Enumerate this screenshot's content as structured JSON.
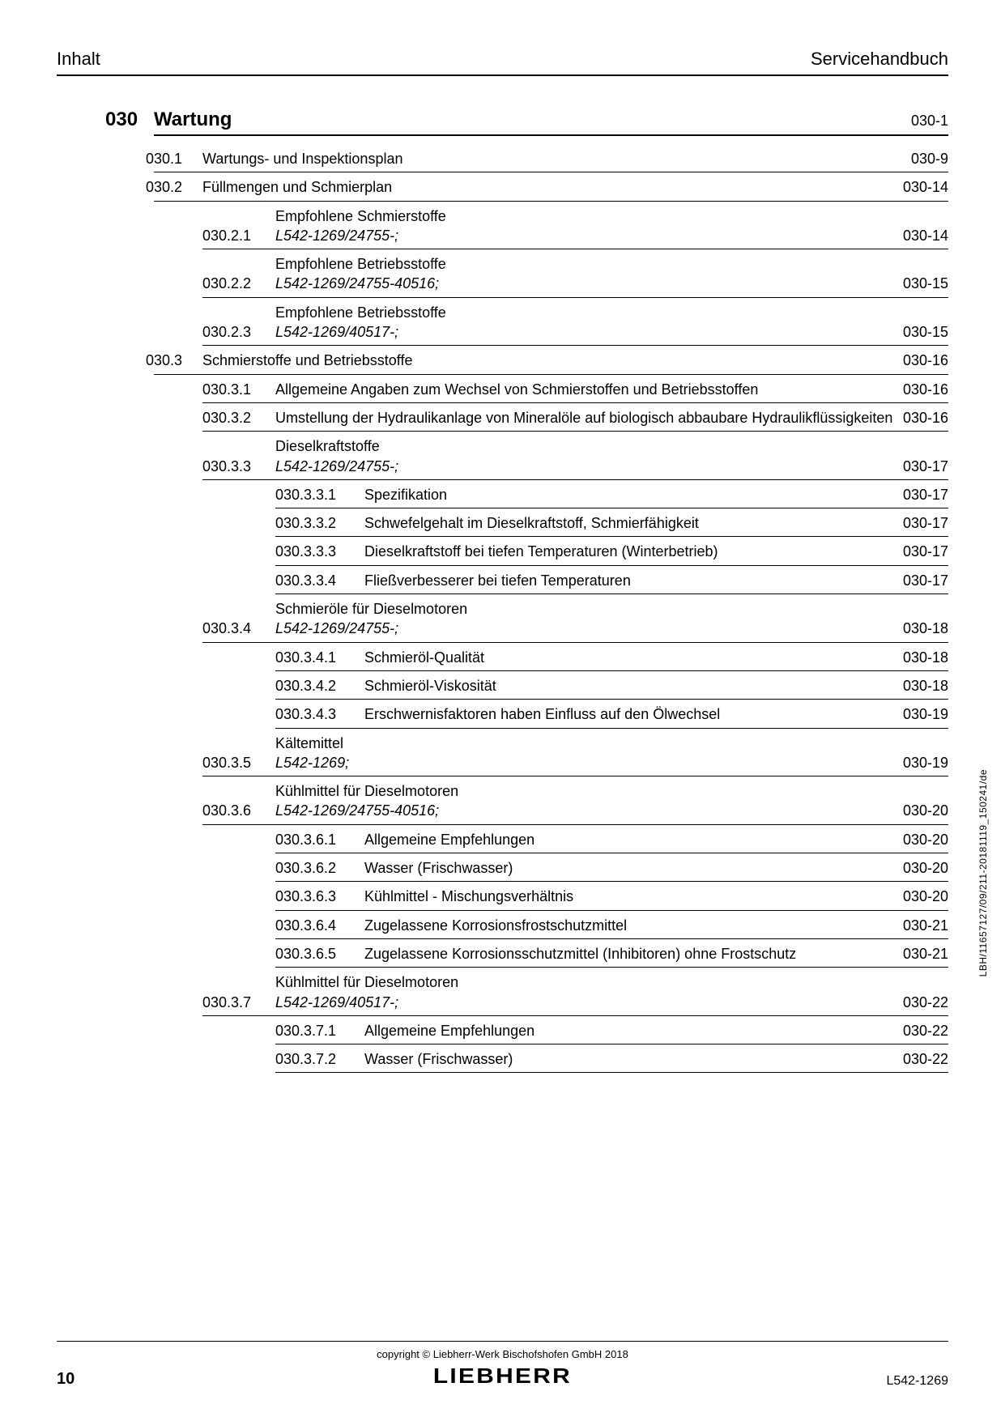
{
  "header": {
    "left": "Inhalt",
    "right": "Servicehandbuch"
  },
  "chapter": {
    "num": "030",
    "title": "Wartung",
    "page": "030-1"
  },
  "entries": [
    {
      "lvl": 1,
      "num": "030.1",
      "txt": "Wartungs- und Inspektionsplan",
      "pg": "030-9"
    },
    {
      "lvl": 1,
      "num": "030.2",
      "txt": "Füllmengen und Schmierplan",
      "pg": "030-14"
    },
    {
      "lvl": 2,
      "num": "030.2.1",
      "txt": "Empfohlene Schmierstoffe",
      "sub": "L542-1269/24755-;",
      "pg": "030-14"
    },
    {
      "lvl": 2,
      "num": "030.2.2",
      "txt": "Empfohlene Betriebsstoffe",
      "sub": "L542-1269/24755-40516;",
      "pg": "030-15"
    },
    {
      "lvl": 2,
      "num": "030.2.3",
      "txt": "Empfohlene Betriebsstoffe",
      "sub": "L542-1269/40517-;",
      "pg": "030-15"
    },
    {
      "lvl": 1,
      "num": "030.3",
      "txt": "Schmierstoffe und Betriebsstoffe",
      "pg": "030-16"
    },
    {
      "lvl": 2,
      "num": "030.3.1",
      "txt": "Allgemeine Angaben zum Wechsel von Schmierstoffen und Betriebsstoffen",
      "pg": "030-16"
    },
    {
      "lvl": 2,
      "num": "030.3.2",
      "txt": "Umstellung der Hydraulikanlage von Mineralöle auf biologisch abbaubare Hydraulikflüssigkeiten",
      "pg": "030-16"
    },
    {
      "lvl": 2,
      "num": "030.3.3",
      "txt": "Dieselkraftstoffe",
      "sub": "L542-1269/24755-;",
      "pg": "030-17"
    },
    {
      "lvl": 3,
      "num": "030.3.3.1",
      "txt": "Spezifikation",
      "pg": "030-17"
    },
    {
      "lvl": 3,
      "num": "030.3.3.2",
      "txt": "Schwefelgehalt im Dieselkraftstoff, Schmierfähigkeit",
      "pg": "030-17"
    },
    {
      "lvl": 3,
      "num": "030.3.3.3",
      "txt": "Dieselkraftstoff bei tiefen Temperaturen (Winterbetrieb)",
      "pg": "030-17"
    },
    {
      "lvl": 3,
      "num": "030.3.3.4",
      "txt": "Fließverbesserer bei tiefen Temperaturen",
      "pg": "030-17"
    },
    {
      "lvl": 2,
      "num": "030.3.4",
      "txt": "Schmieröle für Dieselmotoren",
      "sub": "L542-1269/24755-;",
      "pg": "030-18"
    },
    {
      "lvl": 3,
      "num": "030.3.4.1",
      "txt": "Schmieröl-Qualität",
      "pg": "030-18"
    },
    {
      "lvl": 3,
      "num": "030.3.4.2",
      "txt": "Schmieröl-Viskosität",
      "pg": "030-18"
    },
    {
      "lvl": 3,
      "num": "030.3.4.3",
      "txt": "Erschwernisfaktoren haben Einfluss auf den Ölwechsel",
      "pg": "030-19"
    },
    {
      "lvl": 2,
      "num": "030.3.5",
      "txt": "Kältemittel",
      "sub": "L542-1269;",
      "pg": "030-19"
    },
    {
      "lvl": 2,
      "num": "030.3.6",
      "txt": "Kühlmittel für Dieselmotoren",
      "sub": "L542-1269/24755-40516;",
      "pg": "030-20"
    },
    {
      "lvl": 3,
      "num": "030.3.6.1",
      "txt": "Allgemeine Empfehlungen",
      "pg": "030-20"
    },
    {
      "lvl": 3,
      "num": "030.3.6.2",
      "txt": "Wasser (Frischwasser)",
      "pg": "030-20"
    },
    {
      "lvl": 3,
      "num": "030.3.6.3",
      "txt": "Kühlmittel - Mischungsverhältnis",
      "pg": "030-20"
    },
    {
      "lvl": 3,
      "num": "030.3.6.4",
      "txt": "Zugelassene Korrosionsfrostschutzmittel",
      "pg": "030-21"
    },
    {
      "lvl": 3,
      "num": "030.3.6.5",
      "txt": "Zugelassene Korrosionsschutzmittel (Inhibitoren) ohne Frostschutz",
      "pg": "030-21"
    },
    {
      "lvl": 2,
      "num": "030.3.7",
      "txt": "Kühlmittel für Dieselmotoren",
      "sub": "L542-1269/40517-;",
      "pg": "030-22"
    },
    {
      "lvl": 3,
      "num": "030.3.7.1",
      "txt": "Allgemeine Empfehlungen",
      "pg": "030-22"
    },
    {
      "lvl": 3,
      "num": "030.3.7.2",
      "txt": "Wasser (Frischwasser)",
      "pg": "030-22"
    }
  ],
  "side_text": "LBH/11657127/09/211-20181119_150241/de",
  "footer": {
    "copyright": "copyright © Liebherr-Werk Bischofshofen GmbH 2018",
    "logo": "LIEBHERR",
    "pagenum": "10",
    "model": "L542-1269"
  }
}
